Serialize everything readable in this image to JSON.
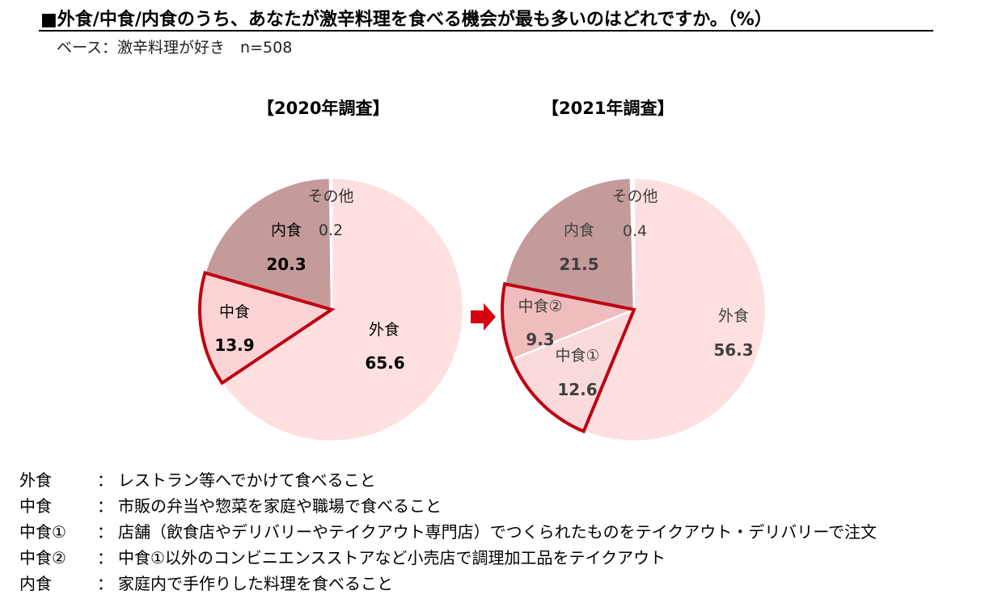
{
  "title": "■外食/中食/内食のうち、あなたが激辛料理を食べる機会が最も多いのはどれですか。（%）",
  "base": "ベース：激辛料理が好き　n=508",
  "colors": {
    "outside": "#fde0df",
    "home": "#c49b9a",
    "nakashoku": "#fbd3d4",
    "nakashoku1": "#fbdadb",
    "nakashoku2": "#efbdbe",
    "highlight": "#c00012",
    "arrow": "#d6000f"
  },
  "chart_data": [
    {
      "type": "pie",
      "title": "【2020年調査】",
      "slices": [
        {
          "label": "外食",
          "value": 65.6,
          "value_label": "65.6"
        },
        {
          "label": "中食",
          "value": 13.9,
          "value_label": "13.9"
        },
        {
          "label": "内食",
          "value": 20.3,
          "value_label": "20.3"
        },
        {
          "label": "その他",
          "value": 0.2,
          "value_label": "0.2"
        }
      ],
      "highlighted": [
        "中食"
      ]
    },
    {
      "type": "pie",
      "title": "【2021年調査】",
      "slices": [
        {
          "label": "外食",
          "value": 56.3,
          "value_label": "56.3"
        },
        {
          "label": "中食①",
          "value": 12.6,
          "value_label": "12.6"
        },
        {
          "label": "中食②",
          "value": 9.3,
          "value_label": "9.3"
        },
        {
          "label": "内食",
          "value": 21.5,
          "value_label": "21.5"
        },
        {
          "label": "その他",
          "value": 0.4,
          "value_label": "0.4"
        }
      ],
      "highlighted": [
        "中食①",
        "中食②"
      ]
    }
  ],
  "legend": [
    {
      "term": "外食",
      "sep": "：",
      "desc": "レストラン等へでかけて食べること"
    },
    {
      "term": "中食",
      "sep": "：",
      "desc": "市販の弁当や惣菜を家庭や職場で食べること"
    },
    {
      "term": "中食①",
      "sep": "：",
      "desc": "店舗（飲食店やデリバリーやテイクアウト専門店）でつくられたものをテイクアウト・デリバリーで注文"
    },
    {
      "term": "中食②",
      "sep": "：",
      "desc": "中食①以外のコンビニエンスストアなど小売店で調理加工品をテイクアウト"
    },
    {
      "term": "内食",
      "sep": "：",
      "desc": "家庭内で手作りした料理を食べること"
    }
  ]
}
